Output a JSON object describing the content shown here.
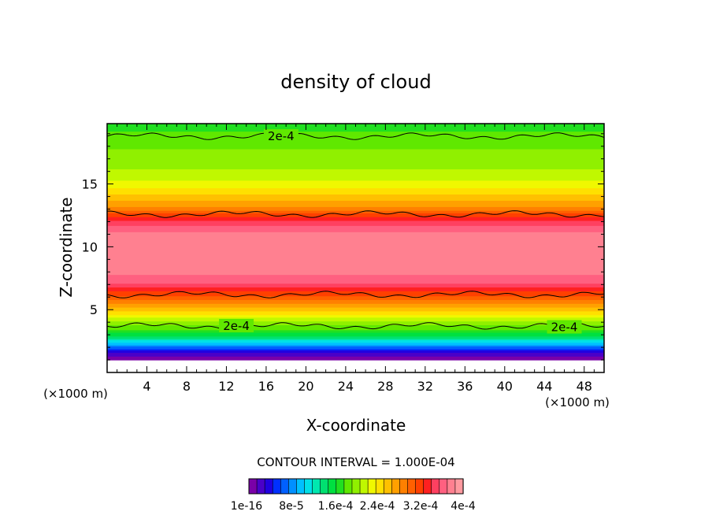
{
  "chart_data": {
    "type": "heatmap",
    "title": "density of cloud",
    "xlabel": "X-coordinate",
    "ylabel": "Z-coordinate",
    "x_units": "(×1000 m)",
    "z_units": "(×1000 m)",
    "xlim": [
      0,
      50
    ],
    "ylim": [
      0,
      19.8
    ],
    "x_ticks": [
      4,
      8,
      12,
      16,
      20,
      24,
      28,
      32,
      36,
      40,
      44,
      48
    ],
    "y_ticks": [
      5,
      10,
      15
    ],
    "contour_interval_label": "CONTOUR INTERVAL = 1.000E-04",
    "contour_labels": [
      {
        "text": "2e-4",
        "x": 17.5,
        "z": 18.8
      },
      {
        "text": "2e-4",
        "x": 13.0,
        "z": 3.7
      },
      {
        "text": "2e-4",
        "x": 46.0,
        "z": 3.6
      }
    ],
    "colorbar": {
      "colors": [
        "#7a00a8",
        "#4a00c8",
        "#2000e0",
        "#0030ff",
        "#0060ff",
        "#0090ff",
        "#00c0ff",
        "#00e0e8",
        "#00e8b0",
        "#00e070",
        "#00e040",
        "#20e020",
        "#60e800",
        "#90f000",
        "#c0f800",
        "#f0f800",
        "#ffe000",
        "#ffc000",
        "#ffa000",
        "#ff8000",
        "#ff6000",
        "#ff4000",
        "#ff2020",
        "#ff4060",
        "#ff6080",
        "#ff8090",
        "#ff9aa0"
      ],
      "tick_labels": [
        "1e-16",
        "8e-5",
        "1.6e-4",
        "2.4e-4",
        "3.2e-4",
        "4e-4"
      ]
    },
    "profile": {
      "z": [
        0.3,
        1.0,
        1.4,
        1.8,
        2.2,
        2.6,
        3.0,
        3.5,
        4.0,
        5.0,
        6.0,
        6.5,
        7.0,
        8.0,
        9.0,
        10.0,
        11.0,
        12.0,
        12.6,
        13.0,
        14.0,
        15.0,
        16.0,
        17.0,
        18.0,
        19.0,
        19.8
      ],
      "density": [
        0,
        0,
        1e-05,
        4e-05,
        8e-05,
        0.00012,
        0.00015,
        0.00018,
        0.0002,
        0.00026,
        0.00031,
        0.00033,
        0.00036,
        0.00038,
        0.00039,
        0.00039,
        0.000385,
        0.00035,
        0.00032,
        0.00029,
        0.00026,
        0.00023,
        0.00021,
        0.0002,
        0.00019,
        0.00018,
        0.00017
      ]
    }
  }
}
